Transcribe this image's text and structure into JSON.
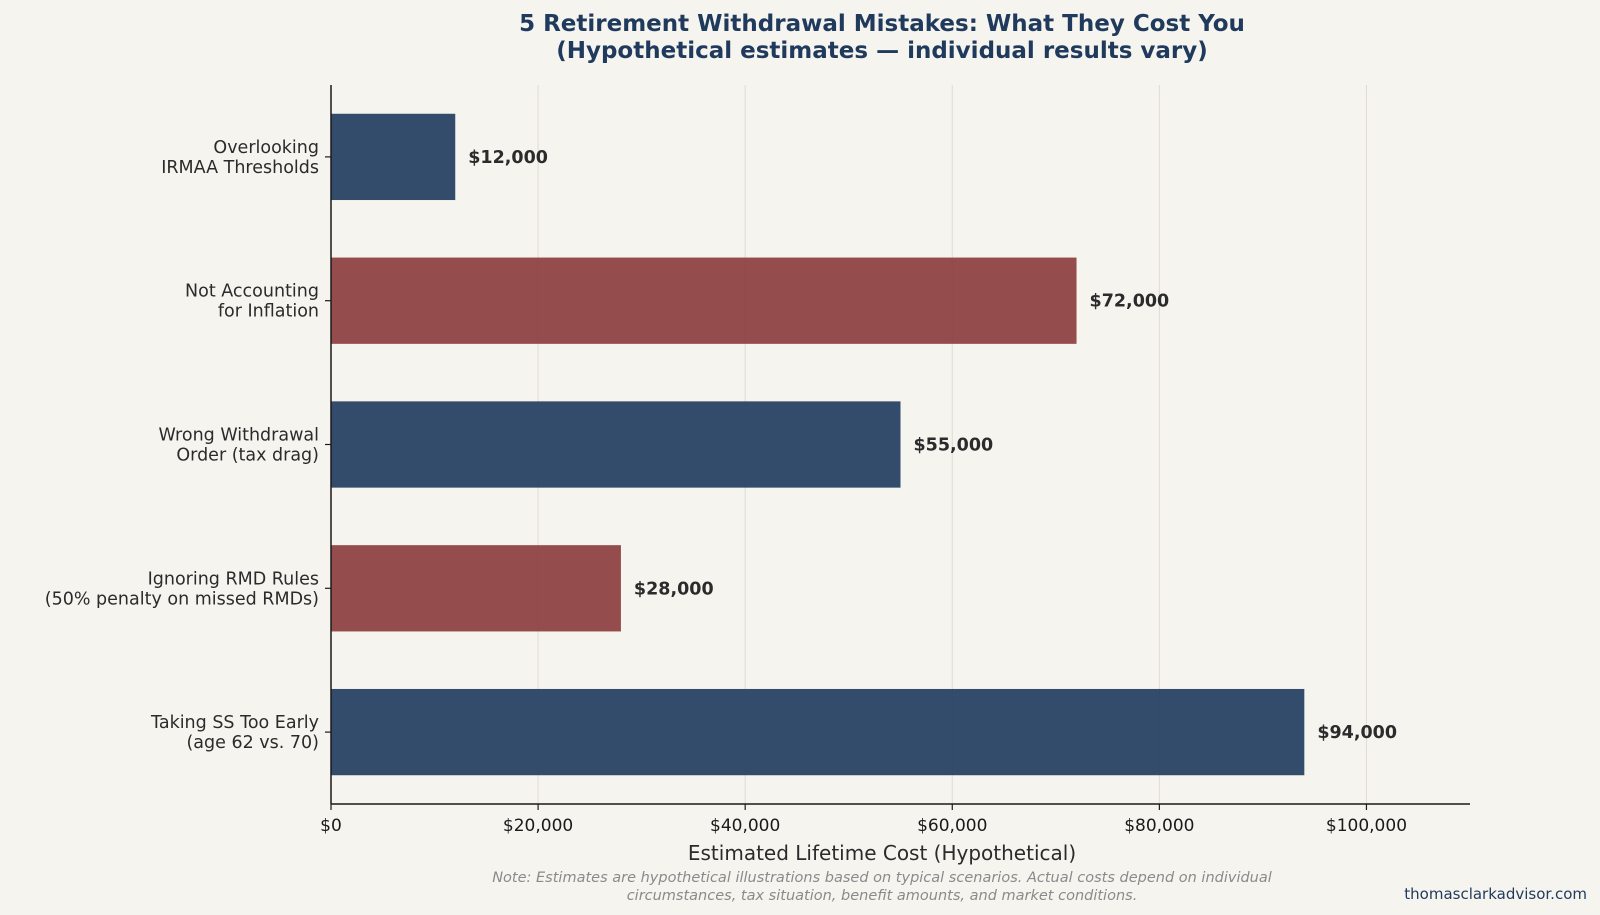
{
  "chart_data": {
    "type": "bar",
    "orientation": "horizontal",
    "title": "5 Retirement Withdrawal Mistakes: What They Cost You",
    "subtitle": "(Hypothetical estimates — individual results vary)",
    "xlabel": "Estimated Lifetime Cost (Hypothetical)",
    "ylabel": "",
    "xlim": [
      0,
      110000
    ],
    "grid": "vertical",
    "x_ticks": [
      0,
      20000,
      40000,
      60000,
      80000,
      100000
    ],
    "x_tick_labels": [
      "$0",
      "$20,000",
      "$40,000",
      "$60,000",
      "$80,000",
      "$100,000"
    ],
    "categories": [
      [
        "Overlooking",
        "IRMAA Thresholds"
      ],
      [
        "Not Accounting",
        "for Inflation"
      ],
      [
        "Wrong Withdrawal",
        "Order (tax drag)"
      ],
      [
        "Ignoring RMD Rules",
        "(50% penalty on missed RMDs)"
      ],
      [
        "Taking SS Too Early",
        "(age 62 vs. 70)"
      ]
    ],
    "values": [
      12000,
      72000,
      55000,
      28000,
      94000
    ],
    "value_labels": [
      "$12,000",
      "$72,000",
      "$55,000",
      "$28,000",
      "$94,000"
    ],
    "bar_colors": [
      "#1f3a5c",
      "#8b3a3a",
      "#1f3a5c",
      "#8b3a3a",
      "#1f3a5c"
    ],
    "note": [
      "Note: Estimates are hypothetical illustrations based on typical scenarios. Actual costs depend on individual",
      "circumstances, tax situation, benefit amounts, and market conditions."
    ],
    "watermark": "thomasclarkadvisor.com"
  },
  "colors": {
    "background": "#f6f4ef",
    "navy": "#1f3a5c",
    "maroon": "#8b3a3a",
    "grid": "#dedbd4",
    "axis": "#1a1a1a"
  }
}
